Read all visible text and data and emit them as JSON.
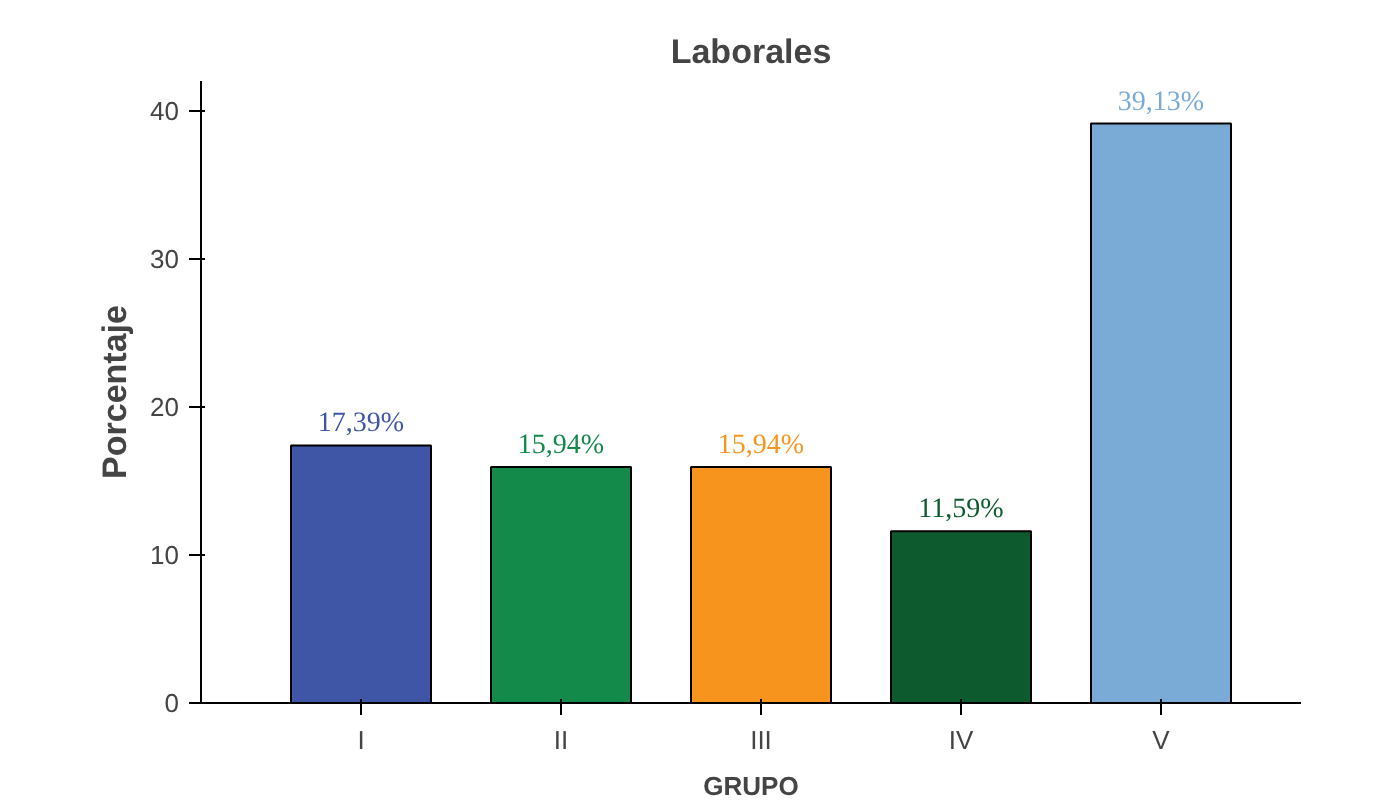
{
  "chart_data": {
    "type": "bar",
    "title": "Laborales",
    "xlabel": "GRUPO",
    "ylabel": "Porcentaje",
    "categories": [
      "I",
      "II",
      "III",
      "IV",
      "V"
    ],
    "values": [
      17.39,
      15.94,
      15.94,
      11.59,
      39.13
    ],
    "colors": [
      "#3f55a6",
      "#13894a",
      "#f7941d",
      "#0d5a2e",
      "#7aaad6"
    ],
    "value_labels": [
      "17,39%",
      "15,94%",
      "15,94%",
      "11,59%",
      "39,13%"
    ],
    "ylim": [
      0,
      42
    ],
    "yticks": [
      0,
      10,
      20,
      30,
      40
    ],
    "grid": false
  }
}
